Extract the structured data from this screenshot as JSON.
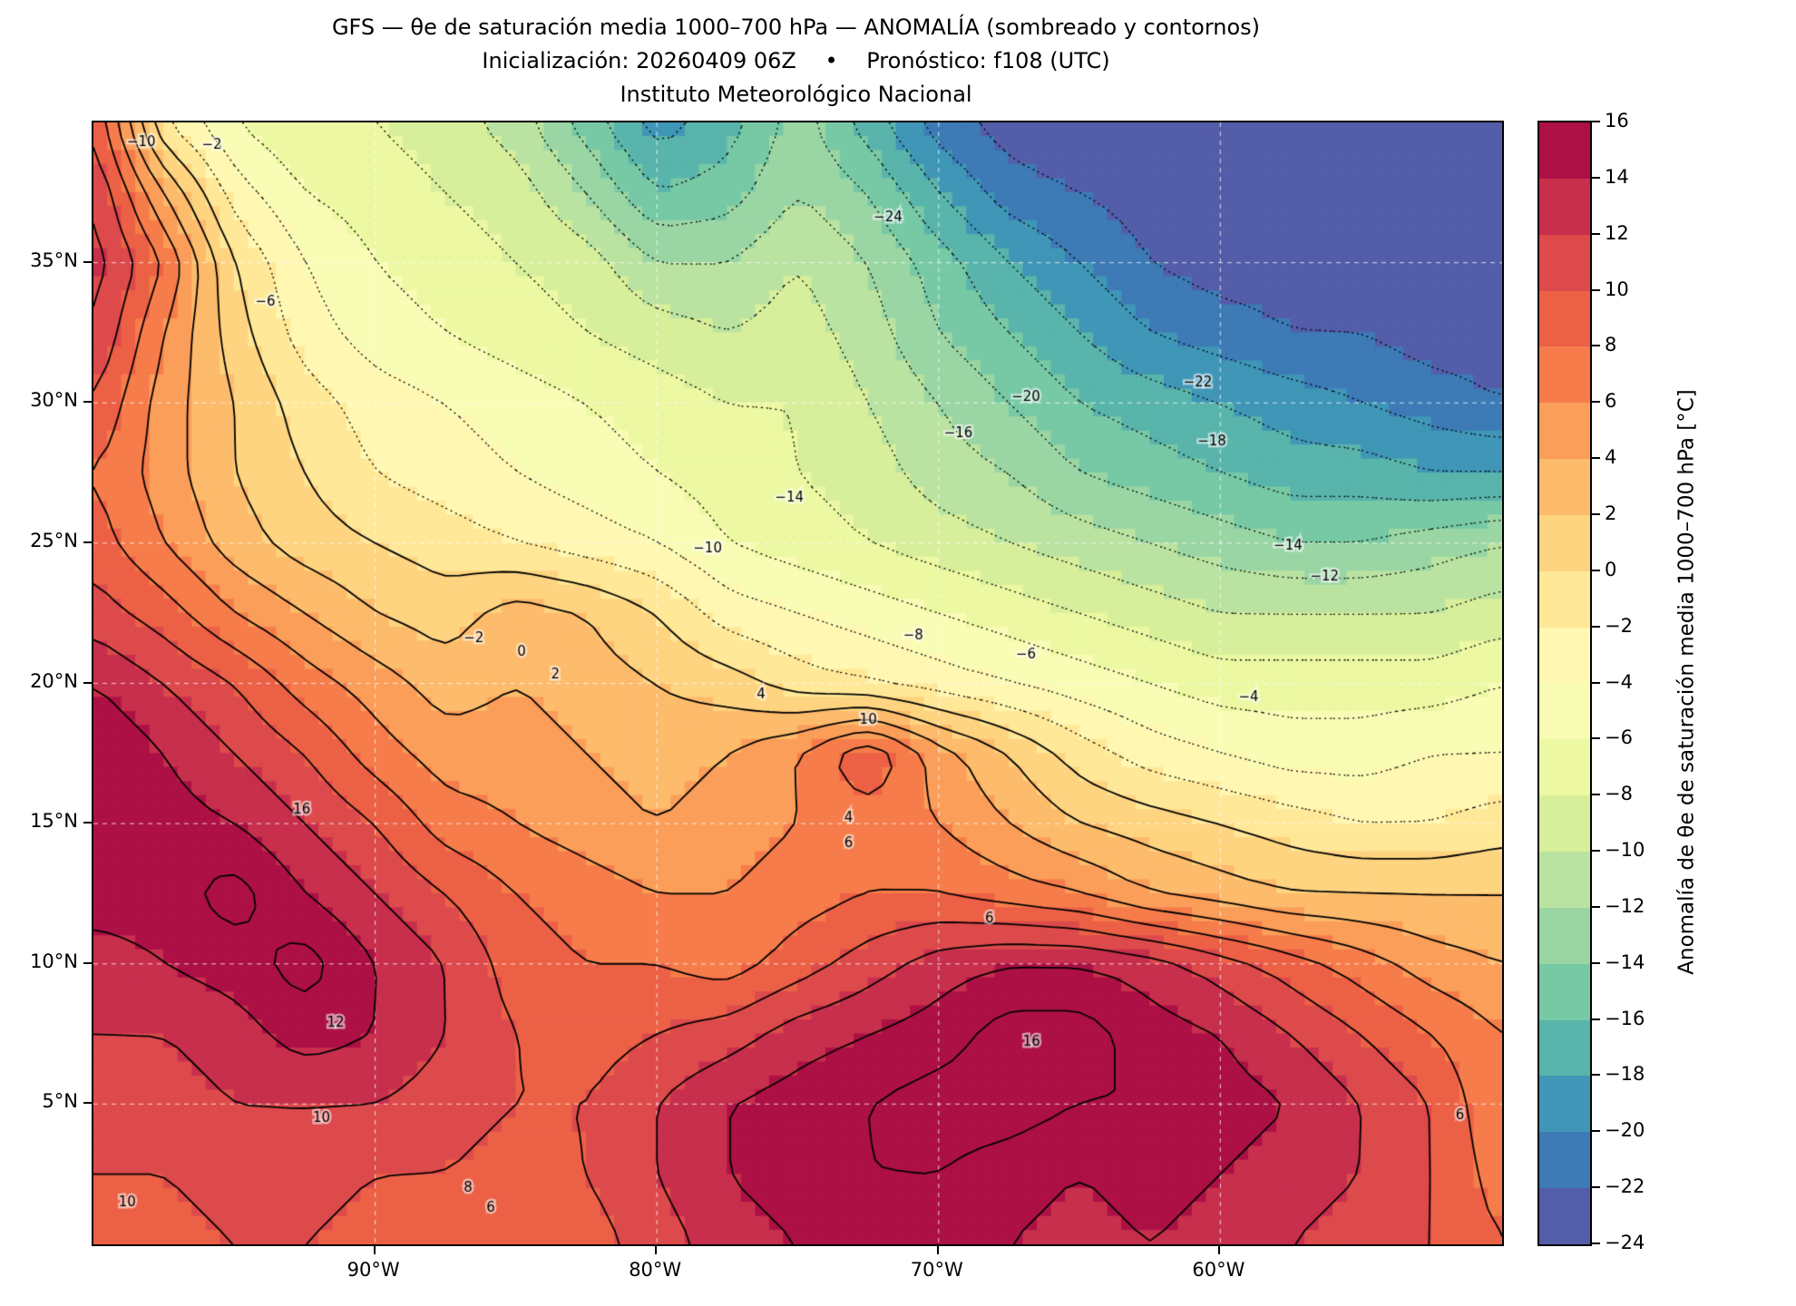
{
  "title": {
    "line1": "GFS — θe de saturación media 1000–700 hPa — ANOMALÍA (sombreado y contornos)",
    "line2": "Inicialización: 20260409 06Z  •  Pronóstico: f108 (UTC)",
    "line3": "Instituto Meteorológico Nacional"
  },
  "axes": {
    "x_ticks": [
      {
        "label": "90°W",
        "lon": -90
      },
      {
        "label": "80°W",
        "lon": -80
      },
      {
        "label": "70°W",
        "lon": -70
      },
      {
        "label": "60°W",
        "lon": -60
      }
    ],
    "y_ticks": [
      {
        "label": "35°N",
        "lat": 35
      },
      {
        "label": "30°N",
        "lat": 30
      },
      {
        "label": "25°N",
        "lat": 25
      },
      {
        "label": "20°N",
        "lat": 20
      },
      {
        "label": "15°N",
        "lat": 15
      },
      {
        "label": "10°N",
        "lat": 10
      },
      {
        "label": "5°N",
        "lat": 5
      }
    ]
  },
  "colorbar": {
    "label": "Anomalía de θe de saturación media 1000–700 hPa [°C]",
    "vmin": -24,
    "vmax": 16,
    "ticks": [
      {
        "label": "16",
        "value": 16
      },
      {
        "label": "14",
        "value": 14
      },
      {
        "label": "12",
        "value": 12
      },
      {
        "label": "10",
        "value": 10
      },
      {
        "label": "8",
        "value": 8
      },
      {
        "label": "6",
        "value": 6
      },
      {
        "label": "4",
        "value": 4
      },
      {
        "label": "2",
        "value": 2
      },
      {
        "label": "0",
        "value": 0
      },
      {
        "label": "−2",
        "value": -2
      },
      {
        "label": "−4",
        "value": -4
      },
      {
        "label": "−6",
        "value": -6
      },
      {
        "label": "−8",
        "value": -8
      },
      {
        "label": "−10",
        "value": -10
      },
      {
        "label": "−12",
        "value": -12
      },
      {
        "label": "−14",
        "value": -14
      },
      {
        "label": "−16",
        "value": -16
      },
      {
        "label": "−18",
        "value": -18
      },
      {
        "label": "−20",
        "value": -20
      },
      {
        "label": "−22",
        "value": -22
      },
      {
        "label": "−24",
        "value": -24
      }
    ],
    "colors": [
      "#535da9",
      "#3d7ab6",
      "#3f96b7",
      "#59b4ab",
      "#77c9a5",
      "#9ad6a4",
      "#bae3a1",
      "#d7ef9b",
      "#ecf8a2",
      "#f9fcb5",
      "#fff7b2",
      "#ffe898",
      "#fed481",
      "#fdbb6c",
      "#fb9e5a",
      "#f67d4b",
      "#ec6146",
      "#dd4a4c",
      "#c72f4c",
      "#ac1045"
    ]
  },
  "chart_data": {
    "type": "heatmap",
    "title": "GFS — θe de saturación media 1000–700 hPa — ANOMALÍA (sombreado y contornos)",
    "units": "°C",
    "lon_range": [
      -100,
      -50
    ],
    "lat_range": [
      0,
      40
    ],
    "contour_levels": {
      "min": -24,
      "max": 16,
      "step": 2,
      "negative_style": "dotted",
      "positive_style": "solid"
    },
    "grid_lons": [
      -100,
      -97.5,
      -95,
      -92.5,
      -90,
      -87.5,
      -85,
      -82.5,
      -80,
      -77.5,
      -75,
      -72.5,
      -70,
      -67.5,
      -65,
      -62.5,
      -60,
      -57.5,
      -55,
      -52.5,
      -50
    ],
    "grid_lats": [
      40,
      37.5,
      35,
      32.5,
      30,
      27.5,
      25,
      22.5,
      20,
      17.5,
      15,
      12.5,
      10,
      7.5,
      5,
      2.5,
      0
    ],
    "values": [
      [
        10,
        -2,
        -6,
        -8,
        -8,
        -9,
        -11,
        -15,
        -19,
        -17,
        -13,
        -17,
        -21,
        -23,
        -24,
        -24,
        -24,
        -24,
        -24,
        -24,
        -24
      ],
      [
        12,
        4,
        -3,
        -6,
        -7,
        -8,
        -9,
        -12,
        -16,
        -15,
        -12,
        -14,
        -18,
        -21,
        -22,
        -23,
        -24,
        -24,
        -24,
        -24,
        -24
      ],
      [
        13,
        8,
        0,
        -4,
        -6,
        -7,
        -8,
        -9,
        -12,
        -12,
        -10,
        -12,
        -15,
        -18,
        -20,
        -22,
        -23,
        -23,
        -24,
        -24,
        -24
      ],
      [
        12,
        6,
        1,
        -3,
        -5,
        -6,
        -7,
        -8,
        -9,
        -10,
        -9,
        -11,
        -14,
        -16,
        -18,
        -20,
        -21,
        -22,
        -22,
        -23,
        -23
      ],
      [
        10,
        5,
        2,
        -1,
        -3,
        -4,
        -5,
        -6,
        -7,
        -8,
        -8,
        -10,
        -12,
        -14,
        -16,
        -17,
        -18,
        -19,
        -20,
        -21,
        -22
      ],
      [
        8,
        5,
        2,
        0,
        -2,
        -3,
        -4,
        -5,
        -6,
        -7,
        -8,
        -9,
        -11,
        -12,
        -14,
        -15,
        -16,
        -17,
        -17,
        -18,
        -18
      ],
      [
        9,
        6,
        3,
        1,
        0,
        -1,
        -2,
        -3,
        -4,
        -6,
        -7,
        -8,
        -9,
        -10,
        -11,
        -12,
        -13,
        -14,
        -14,
        -13,
        -12
      ],
      [
        11,
        9,
        6,
        4,
        2,
        1,
        3,
        2,
        0,
        -3,
        -4,
        -5,
        -6,
        -7,
        -8,
        -9,
        -10,
        -10,
        -10,
        -10,
        -9
      ],
      [
        14,
        12,
        10,
        7,
        5,
        3,
        4,
        3,
        2,
        1,
        -1,
        -2,
        -3,
        -4,
        -5,
        -6,
        -7,
        -7,
        -7,
        -7,
        -6
      ],
      [
        16,
        14,
        12,
        10,
        7,
        5,
        5,
        4,
        3,
        4,
        6,
        10,
        5,
        2,
        -1,
        -3,
        -4,
        -5,
        -5,
        -4,
        -4
      ],
      [
        16,
        15,
        14,
        12,
        10,
        7,
        6,
        5,
        4,
        5,
        6,
        7,
        6,
        4,
        2,
        1,
        0,
        -1,
        -2,
        -2,
        -1
      ],
      [
        15,
        15,
        17,
        14,
        12,
        10,
        8,
        7,
        6,
        6,
        7,
        8,
        8,
        7,
        6,
        4,
        3,
        2,
        2,
        2,
        2
      ],
      [
        13,
        14,
        15,
        17,
        14,
        12,
        9,
        8,
        8,
        7,
        9,
        11,
        13,
        14,
        14,
        13,
        11,
        9,
        7,
        5,
        4
      ],
      [
        12,
        12,
        13,
        15,
        14,
        12,
        10,
        9,
        10,
        11,
        13,
        14,
        15,
        17,
        17,
        15,
        14,
        12,
        10,
        8,
        6
      ],
      [
        11,
        11,
        12,
        12,
        12,
        11,
        10,
        10,
        12,
        14,
        15,
        16,
        17,
        17,
        16,
        16,
        15,
        14,
        12,
        10,
        6
      ],
      [
        10,
        10,
        11,
        11,
        10,
        10,
        9,
        10,
        12,
        14,
        15,
        16,
        16,
        15,
        14,
        15,
        14,
        13,
        12,
        10,
        7
      ],
      [
        9,
        9,
        10,
        10,
        9,
        8,
        8,
        9,
        11,
        13,
        14,
        15,
        15,
        14,
        13,
        14,
        13,
        12,
        11,
        10,
        8
      ]
    ],
    "contour_labels": [
      {
        "text": "−10",
        "lon": -98.3,
        "lat": 39.3
      },
      {
        "text": "−2",
        "lon": -95.8,
        "lat": 39.2
      },
      {
        "text": "−6",
        "lon": -93.9,
        "lat": 33.6
      },
      {
        "text": "−24",
        "lon": -71.8,
        "lat": 36.6
      },
      {
        "text": "−22",
        "lon": -60.8,
        "lat": 30.7
      },
      {
        "text": "−20",
        "lon": -66.9,
        "lat": 30.2
      },
      {
        "text": "−18",
        "lon": -60.3,
        "lat": 28.6
      },
      {
        "text": "−16",
        "lon": -69.3,
        "lat": 28.9
      },
      {
        "text": "−14",
        "lon": -75.3,
        "lat": 26.6
      },
      {
        "text": "−14",
        "lon": -57.6,
        "lat": 24.9
      },
      {
        "text": "−12",
        "lon": -56.3,
        "lat": 23.8
      },
      {
        "text": "−10",
        "lon": -78.2,
        "lat": 24.8
      },
      {
        "text": "−8",
        "lon": -70.9,
        "lat": 21.7
      },
      {
        "text": "−6",
        "lon": -66.9,
        "lat": 21.0
      },
      {
        "text": "−4",
        "lon": -59.0,
        "lat": 19.5
      },
      {
        "text": "−2",
        "lon": -86.5,
        "lat": 21.6
      },
      {
        "text": "0",
        "lon": -84.8,
        "lat": 21.1
      },
      {
        "text": "2",
        "lon": -83.6,
        "lat": 20.3
      },
      {
        "text": "4",
        "lon": -76.3,
        "lat": 19.6
      },
      {
        "text": "10",
        "lon": -72.5,
        "lat": 18.7
      },
      {
        "text": "4",
        "lon": -73.2,
        "lat": 15.2
      },
      {
        "text": "6",
        "lon": -73.2,
        "lat": 14.3
      },
      {
        "text": "6",
        "lon": -68.2,
        "lat": 11.6
      },
      {
        "text": "16",
        "lon": -66.7,
        "lat": 7.2
      },
      {
        "text": "16",
        "lon": -92.6,
        "lat": 15.5
      },
      {
        "text": "12",
        "lon": -91.4,
        "lat": 7.9
      },
      {
        "text": "10",
        "lon": -91.9,
        "lat": 4.5
      },
      {
        "text": "8",
        "lon": -86.7,
        "lat": 2.0
      },
      {
        "text": "6",
        "lon": -85.9,
        "lat": 1.3
      },
      {
        "text": "10",
        "lon": -98.8,
        "lat": 1.5
      },
      {
        "text": "6",
        "lon": -51.5,
        "lat": 4.6
      }
    ]
  }
}
